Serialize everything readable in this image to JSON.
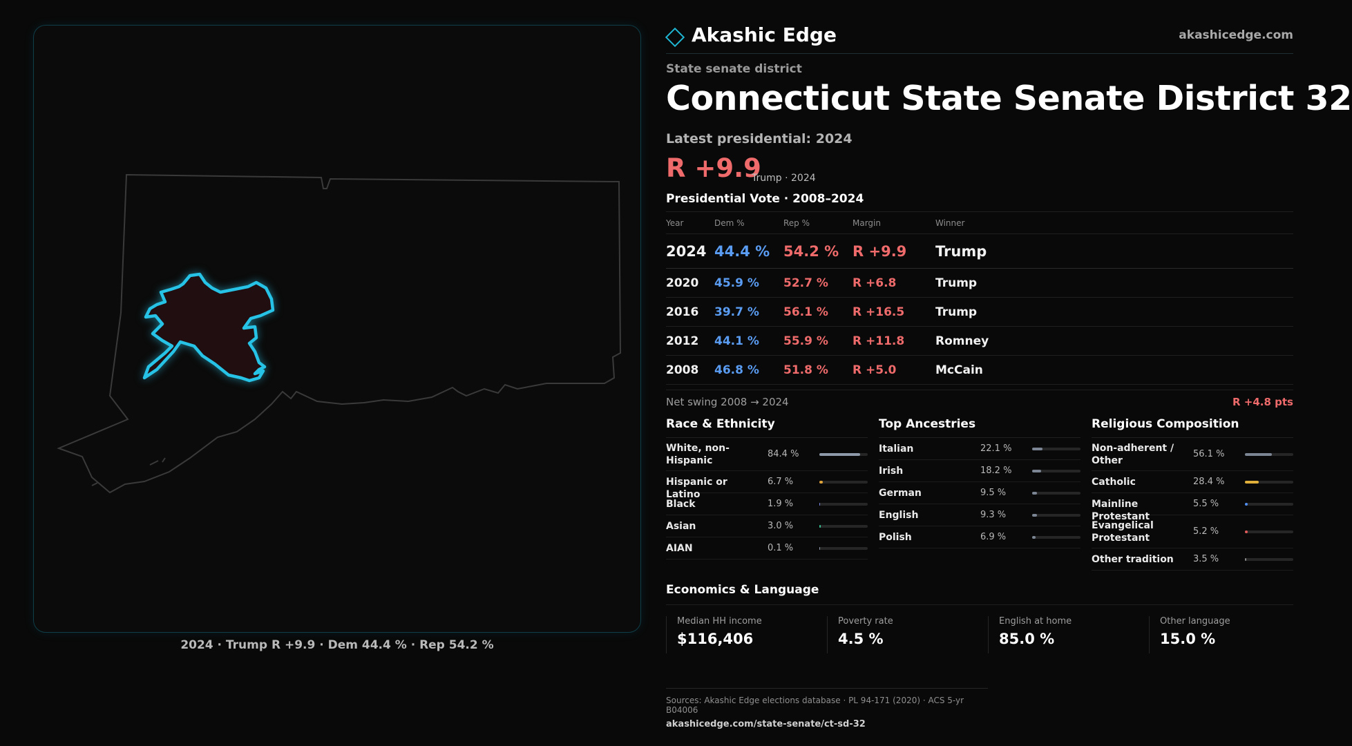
{
  "brand": {
    "name": "Akashic Edge",
    "url": "akashicedge.com"
  },
  "kind": "State senate district",
  "title": "Connecticut State Senate District 32",
  "latest": "Latest presidential: 2024",
  "headline": {
    "margin": "R +9.9",
    "sub": "Trump · 2024"
  },
  "map": {
    "caption": "2024 · Trump R +9.9 · Dem 44.4 % · Rep 54.2 %",
    "highlight_color": "#27c3e6"
  },
  "vote_table": {
    "title": "Presidential Vote · 2008–2024",
    "headers": {
      "year": "Year",
      "dem": "Dem %",
      "rep": "Rep %",
      "margin": "Margin",
      "winner": "Winner"
    },
    "rows": [
      {
        "year": "2024",
        "dem": "44.4 %",
        "rep": "54.2 %",
        "margin": "R +9.9",
        "winner": "Trump"
      },
      {
        "year": "2020",
        "dem": "45.9 %",
        "rep": "52.7 %",
        "margin": "R +6.8",
        "winner": "Trump"
      },
      {
        "year": "2016",
        "dem": "39.7 %",
        "rep": "56.1 %",
        "margin": "R +16.5",
        "winner": "Trump"
      },
      {
        "year": "2012",
        "dem": "44.1 %",
        "rep": "55.9 %",
        "margin": "R +11.8",
        "winner": "Romney"
      },
      {
        "year": "2008",
        "dem": "46.8 %",
        "rep": "51.8 %",
        "margin": "R +5.0",
        "winner": "McCain"
      }
    ]
  },
  "swing": {
    "label": "Net swing 2008 → 2024",
    "value": "R +4.8 pts"
  },
  "race": {
    "title": "Race & Ethnicity",
    "items": [
      {
        "label": "White, non-Hispanic",
        "value": "84.4 %",
        "fraction": 0.844,
        "color": "#8e9aaa"
      },
      {
        "label": "Hispanic or Latino",
        "value": "6.7 %",
        "fraction": 0.067,
        "color": "#e0a43a"
      },
      {
        "label": "Black",
        "value": "1.9 %",
        "fraction": 0.019,
        "color": "#7a86e0"
      },
      {
        "label": "Asian",
        "value": "3.0 %",
        "fraction": 0.03,
        "color": "#35c08f"
      },
      {
        "label": "AIAN",
        "value": "0.1 %",
        "fraction": 0.001,
        "color": "#8e9aaa"
      }
    ]
  },
  "ancestry": {
    "title": "Top Ancestries",
    "items": [
      {
        "label": "Italian",
        "value": "22.1 %",
        "fraction": 0.221,
        "color": "#7b8593"
      },
      {
        "label": "Irish",
        "value": "18.2 %",
        "fraction": 0.182,
        "color": "#7b8593"
      },
      {
        "label": "German",
        "value": "9.5 %",
        "fraction": 0.095,
        "color": "#7b8593"
      },
      {
        "label": "English",
        "value": "9.3 %",
        "fraction": 0.093,
        "color": "#7b8593"
      },
      {
        "label": "Polish",
        "value": "6.9 %",
        "fraction": 0.069,
        "color": "#7b8593"
      }
    ]
  },
  "religion": {
    "title": "Religious Composition",
    "items": [
      {
        "label": "Non-adherent / Other",
        "value": "56.1 %",
        "fraction": 0.561,
        "color": "#7b8593"
      },
      {
        "label": "Catholic",
        "value": "28.4 %",
        "fraction": 0.284,
        "color": "#e0b03a"
      },
      {
        "label": "Mainline Protestant",
        "value": "5.5 %",
        "fraction": 0.055,
        "color": "#4f8ef0"
      },
      {
        "label": "Evangelical Protestant",
        "value": "5.2 %",
        "fraction": 0.052,
        "color": "#e05a5a"
      },
      {
        "label": "Other tradition",
        "value": "3.5 %",
        "fraction": 0.035,
        "color": "#8a8a8a"
      }
    ]
  },
  "economics": {
    "title": "Economics & Language",
    "items": [
      {
        "label": "Median HH income",
        "value": "$116,406"
      },
      {
        "label": "Poverty rate",
        "value": "4.5 %"
      },
      {
        "label": "English at home",
        "value": "85.0 %"
      },
      {
        "label": "Other language",
        "value": "15.0 %"
      }
    ]
  },
  "sources": {
    "line1": "Sources: Akashic Edge elections database · PL 94-171 (2020) · ACS 5-yr B04006",
    "line2": "akashicedge.com/state-senate/ct-sd-32"
  }
}
